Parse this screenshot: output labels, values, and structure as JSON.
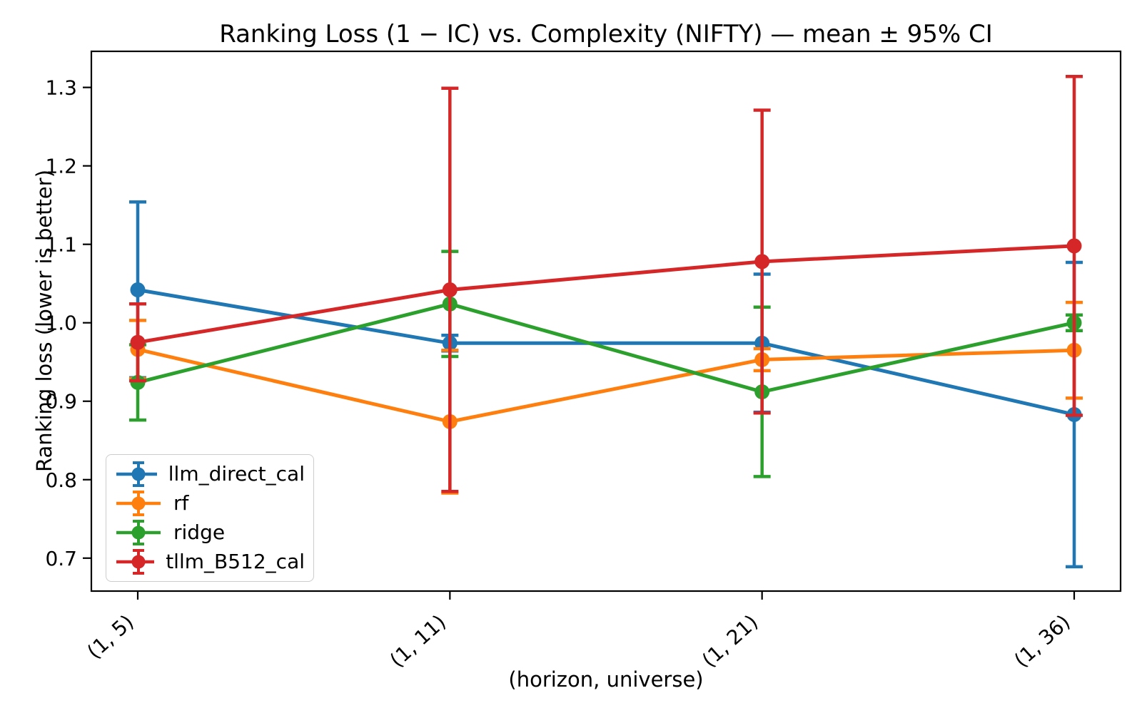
{
  "chart_data": {
    "type": "line",
    "title": "Ranking Loss (1 − IC) vs. Complexity (NIFTY) — mean ± 95% CI",
    "xlabel": "(horizon, universe)",
    "ylabel": "Ranking loss (lower is better)",
    "categories": [
      "(1, 5)",
      "(1, 11)",
      "(1, 21)",
      "(1, 36)"
    ],
    "yticks": [
      0.7,
      0.8,
      0.9,
      1.0,
      1.1,
      1.2,
      1.3
    ],
    "ylim": [
      0.658,
      1.346
    ],
    "grid": false,
    "error_bars": true,
    "legend_position": "lower left",
    "series": [
      {
        "name": "llm_direct_cal",
        "color": "#1f77b4",
        "means": [
          1.042,
          0.974,
          0.974,
          0.883
        ],
        "ci95": [
          0.112,
          0.01,
          0.088,
          0.194
        ]
      },
      {
        "name": "rf",
        "color": "#ff7f0e",
        "means": [
          0.966,
          0.874,
          0.953,
          0.965
        ],
        "ci95": [
          0.037,
          0.091,
          0.014,
          0.061
        ]
      },
      {
        "name": "ridge",
        "color": "#2ca02c",
        "means": [
          0.924,
          1.024,
          0.912,
          1.0
        ],
        "ci95": [
          0.048,
          0.067,
          0.108,
          0.01
        ]
      },
      {
        "name": "tllm_B512_cal",
        "color": "#d62728",
        "means": [
          0.975,
          1.042,
          1.078,
          1.098
        ],
        "ci95": [
          0.049,
          0.257,
          0.193,
          0.216
        ]
      }
    ]
  }
}
